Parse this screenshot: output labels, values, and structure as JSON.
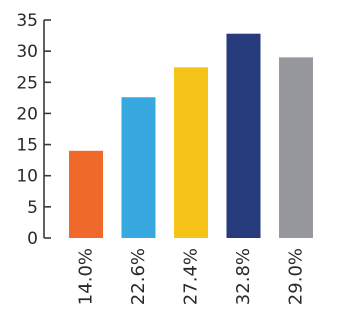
{
  "chart_data": {
    "type": "bar",
    "categories": [
      "14.0%",
      "22.6%",
      "27.4%",
      "32.8%",
      "29.0%"
    ],
    "values": [
      14.0,
      22.6,
      27.4,
      32.8,
      29.0
    ],
    "colors": [
      "#ef6a2a",
      "#38a8e0",
      "#f6c319",
      "#263b7c",
      "#97989d"
    ],
    "ylim": [
      0,
      35
    ],
    "yticks": [
      0,
      5,
      10,
      15,
      20,
      25,
      30,
      35
    ],
    "title": "",
    "xlabel": "",
    "ylabel": "",
    "grid": false,
    "legend": "none"
  }
}
